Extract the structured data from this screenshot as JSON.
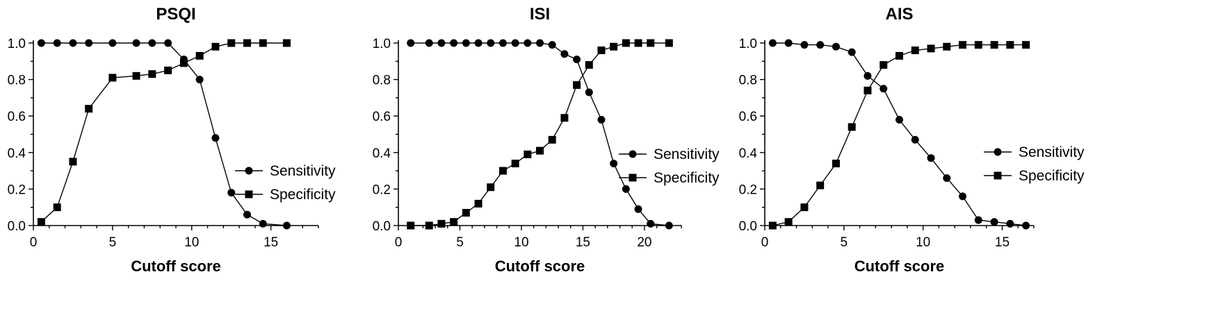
{
  "chart_data": [
    {
      "type": "line",
      "title": "PSQI",
      "xlabel": "Cutoff score",
      "ylabel": "",
      "xlim": [
        0,
        18
      ],
      "ylim": [
        0,
        1.0
      ],
      "xticks": [
        "0",
        "5",
        "10",
        "15"
      ],
      "yticks": [
        "0.0",
        "0.2",
        "0.4",
        "0.6",
        "0.8",
        "1.0"
      ],
      "grid": false,
      "legend_position": "bottom-right",
      "series": [
        {
          "name": "Sensitivity",
          "marker": "circle",
          "x": [
            0.5,
            1.5,
            2.5,
            3.5,
            5,
            6.5,
            7.5,
            8.5,
            9.5,
            10.5,
            11.5,
            12.5,
            13.5,
            14.5,
            16
          ],
          "y": [
            1.0,
            1.0,
            1.0,
            1.0,
            1.0,
            1.0,
            1.0,
            1.0,
            0.91,
            0.8,
            0.48,
            0.18,
            0.06,
            0.01,
            0.0
          ]
        },
        {
          "name": "Specificity",
          "marker": "square",
          "x": [
            0.5,
            1.5,
            2.5,
            3.5,
            5,
            6.5,
            7.5,
            8.5,
            9.5,
            10.5,
            11.5,
            12.5,
            13.5,
            14.5,
            16
          ],
          "y": [
            0.02,
            0.1,
            0.35,
            0.64,
            0.81,
            0.82,
            0.83,
            0.85,
            0.89,
            0.93,
            0.98,
            1.0,
            1.0,
            1.0,
            1.0
          ]
        }
      ]
    },
    {
      "type": "line",
      "title": "ISI",
      "xlabel": "Cutoff score",
      "ylabel": "",
      "xlim": [
        0,
        23
      ],
      "ylim": [
        0,
        1.0
      ],
      "xticks": [
        "0",
        "5",
        "10",
        "15",
        "20"
      ],
      "yticks": [
        "0.0",
        "0.2",
        "0.4",
        "0.6",
        "0.8",
        "1.0"
      ],
      "grid": false,
      "legend_position": "right",
      "series": [
        {
          "name": "Sensitivity",
          "marker": "circle",
          "x": [
            1,
            2.5,
            3.5,
            4.5,
            5.5,
            6.5,
            7.5,
            8.5,
            9.5,
            10.5,
            11.5,
            12.5,
            13.5,
            14.5,
            15.5,
            16.5,
            17.5,
            18.5,
            19.5,
            20.5,
            22
          ],
          "y": [
            1.0,
            1.0,
            1.0,
            1.0,
            1.0,
            1.0,
            1.0,
            1.0,
            1.0,
            1.0,
            1.0,
            0.99,
            0.94,
            0.91,
            0.73,
            0.58,
            0.34,
            0.2,
            0.09,
            0.01,
            0.0
          ]
        },
        {
          "name": "Specificity",
          "marker": "square",
          "x": [
            1,
            2.5,
            3.5,
            4.5,
            5.5,
            6.5,
            7.5,
            8.5,
            9.5,
            10.5,
            11.5,
            12.5,
            13.5,
            14.5,
            15.5,
            16.5,
            17.5,
            18.5,
            19.5,
            20.5,
            22
          ],
          "y": [
            0.0,
            0.0,
            0.01,
            0.02,
            0.07,
            0.12,
            0.21,
            0.3,
            0.34,
            0.39,
            0.41,
            0.47,
            0.59,
            0.77,
            0.88,
            0.96,
            0.98,
            1.0,
            1.0,
            1.0,
            1.0
          ]
        }
      ]
    },
    {
      "type": "line",
      "title": "AIS",
      "xlabel": "Cutoff score",
      "ylabel": "",
      "xlim": [
        0,
        17
      ],
      "ylim": [
        0,
        1.0
      ],
      "xticks": [
        "0",
        "5",
        "10",
        "15"
      ],
      "yticks": [
        "0.0",
        "0.2",
        "0.4",
        "0.6",
        "0.8",
        "1.0"
      ],
      "grid": false,
      "legend_position": "right",
      "series": [
        {
          "name": "Sensitivity",
          "marker": "circle",
          "x": [
            0.5,
            1.5,
            2.5,
            3.5,
            4.5,
            5.5,
            6.5,
            7.5,
            8.5,
            9.5,
            10.5,
            11.5,
            12.5,
            13.5,
            14.5,
            15.5,
            16.5
          ],
          "y": [
            1.0,
            1.0,
            0.99,
            0.99,
            0.98,
            0.95,
            0.82,
            0.75,
            0.58,
            0.47,
            0.37,
            0.26,
            0.16,
            0.03,
            0.02,
            0.01,
            0.0
          ]
        },
        {
          "name": "Specificity",
          "marker": "square",
          "x": [
            0.5,
            1.5,
            2.5,
            3.5,
            4.5,
            5.5,
            6.5,
            7.5,
            8.5,
            9.5,
            10.5,
            11.5,
            12.5,
            13.5,
            14.5,
            15.5,
            16.5
          ],
          "y": [
            0.0,
            0.02,
            0.1,
            0.22,
            0.34,
            0.54,
            0.74,
            0.88,
            0.93,
            0.96,
            0.97,
            0.98,
            0.99,
            0.99,
            0.99,
            0.99,
            0.99
          ]
        }
      ]
    }
  ]
}
